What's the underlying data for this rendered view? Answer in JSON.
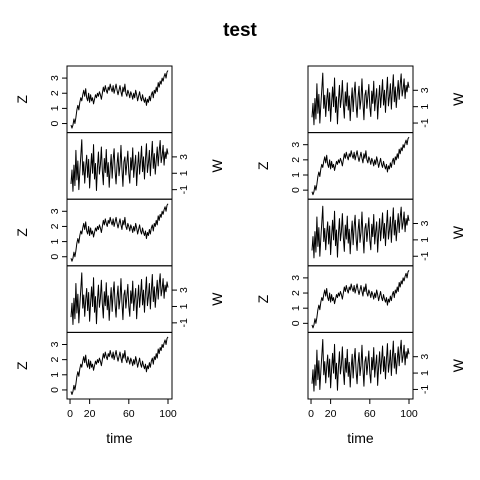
{
  "chart_data": {
    "type": "line",
    "title": "test",
    "xlabel": "time",
    "x_range": [
      1,
      100
    ],
    "xticks": [
      0,
      20,
      60,
      100
    ],
    "grid": false,
    "legend": "none",
    "series_defs": {
      "z": {
        "name": "Z",
        "ylim": [
          -0.4,
          3.6
        ],
        "yticks": [
          0,
          1,
          2,
          3
        ],
        "values": [
          -0.1,
          -0.3,
          -0.1,
          0.3,
          0.0,
          0.4,
          0.9,
          1.2,
          0.9,
          1.4,
          1.7,
          1.5,
          1.9,
          2.2,
          1.8,
          2.3,
          1.7,
          1.5,
          2.0,
          1.4,
          1.9,
          1.5,
          1.7,
          1.3,
          1.6,
          1.9,
          1.7,
          2.0,
          1.8,
          2.1,
          1.9,
          1.6,
          2.0,
          2.4,
          2.1,
          2.5,
          2.2,
          2.0,
          2.4,
          2.2,
          2.6,
          2.3,
          2.1,
          2.5,
          2.0,
          2.3,
          2.6,
          2.2,
          1.9,
          2.2,
          2.5,
          2.1,
          1.8,
          2.4,
          2.1,
          2.6,
          2.0,
          1.8,
          2.2,
          2.0,
          1.7,
          2.1,
          1.9,
          1.6,
          2.0,
          1.7,
          2.2,
          1.9,
          1.5,
          1.8,
          2.1,
          1.7,
          1.5,
          1.9,
          1.6,
          1.4,
          1.7,
          1.2,
          1.6,
          1.4,
          1.8,
          1.5,
          1.9,
          2.1,
          1.7,
          2.2,
          2.0,
          2.4,
          2.1,
          2.7,
          2.4,
          2.8,
          2.6,
          3.0,
          2.8,
          3.1,
          3.3,
          3.0,
          3.4,
          3.5
        ]
      },
      "w": {
        "name": "W",
        "ylim": [
          -1.8,
          5.6
        ],
        "yticks": [
          -1,
          1,
          3
        ],
        "values": [
          -0.3,
          1.4,
          -1.2,
          2.0,
          -0.5,
          3.8,
          0.2,
          2.5,
          -1.0,
          1.2,
          3.1,
          5.1,
          0.8,
          2.4,
          -0.2,
          1.8,
          3.2,
          0.5,
          2.7,
          -0.8,
          1.5,
          3.4,
          1.0,
          4.5,
          0.3,
          2.2,
          -1.1,
          1.7,
          3.6,
          0.9,
          2.0,
          4.2,
          1.3,
          -0.4,
          2.8,
          1.1,
          3.9,
          0.6,
          2.3,
          -0.7,
          1.6,
          3.3,
          0.4,
          2.6,
          4.0,
          1.2,
          -0.3,
          2.1,
          3.5,
          0.7,
          1.9,
          4.4,
          1.5,
          -0.6,
          2.4,
          3.0,
          0.8,
          2.2,
          3.7,
          1.0,
          -0.2,
          2.9,
          1.4,
          4.1,
          0.5,
          2.0,
          3.2,
          -0.5,
          1.8,
          3.6,
          0.9,
          2.5,
          4.3,
          1.2,
          3.0,
          0.3,
          2.7,
          4.6,
          1.1,
          2.2,
          3.8,
          0.7,
          2.9,
          4.9,
          1.6,
          3.4,
          0.9,
          2.6,
          4.2,
          1.9,
          3.7,
          5.0,
          2.3,
          3.1,
          4.4,
          2.0,
          3.6,
          2.8,
          4.0,
          3.3
        ]
      }
    },
    "panels": [
      {
        "column": "left",
        "row": 1,
        "series": "z",
        "axis_side": "left"
      },
      {
        "column": "left",
        "row": 2,
        "series": "w",
        "axis_side": "right"
      },
      {
        "column": "left",
        "row": 3,
        "series": "z",
        "axis_side": "left"
      },
      {
        "column": "left",
        "row": 4,
        "series": "w",
        "axis_side": "right"
      },
      {
        "column": "left",
        "row": 5,
        "series": "z",
        "axis_side": "left"
      },
      {
        "column": "right",
        "row": 1,
        "series": "w",
        "axis_side": "right"
      },
      {
        "column": "right",
        "row": 2,
        "series": "z",
        "axis_side": "left"
      },
      {
        "column": "right",
        "row": 3,
        "series": "w",
        "axis_side": "right"
      },
      {
        "column": "right",
        "row": 4,
        "series": "z",
        "axis_side": "left"
      },
      {
        "column": "right",
        "row": 5,
        "series": "w",
        "axis_side": "right"
      }
    ]
  }
}
